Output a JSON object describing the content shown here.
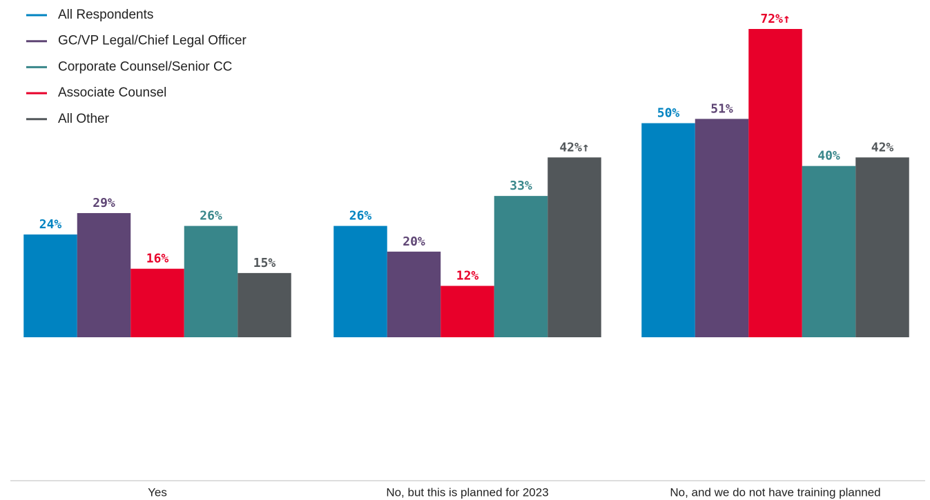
{
  "chart_data": {
    "type": "bar",
    "categories": [
      "Yes",
      "No, but this is planned for 2023",
      "No, and we do not have training planned"
    ],
    "series": [
      {
        "name": "All Respondents",
        "color": "#0083c1",
        "values": [
          24,
          26,
          50
        ],
        "value_labels": [
          "24%",
          "26%",
          "50%"
        ]
      },
      {
        "name": "GC/VP Legal/Chief Legal Officer",
        "color": "#5e4574",
        "values": [
          29,
          20,
          51
        ],
        "value_labels": [
          "29%",
          "20%",
          "51%"
        ]
      },
      {
        "name": "Corporate Counsel/Senior CC",
        "color": "#38868a",
        "values": [
          26,
          33,
          40
        ],
        "value_labels": [
          "26%",
          "33%",
          "40%"
        ]
      },
      {
        "name": "Associate Counsel",
        "color": "#e8002a",
        "values": [
          16,
          12,
          72
        ],
        "value_labels": [
          "16%",
          "12%",
          "72%↑"
        ]
      },
      {
        "name": "All Other",
        "color": "#52575a",
        "values": [
          15,
          42,
          42
        ],
        "value_labels": [
          "15%",
          "42%↑",
          "42%"
        ]
      }
    ],
    "bar_order": [
      0,
      1,
      3,
      2,
      4
    ],
    "ylim": [
      -33.5,
      72
    ],
    "legend": "top-left"
  }
}
